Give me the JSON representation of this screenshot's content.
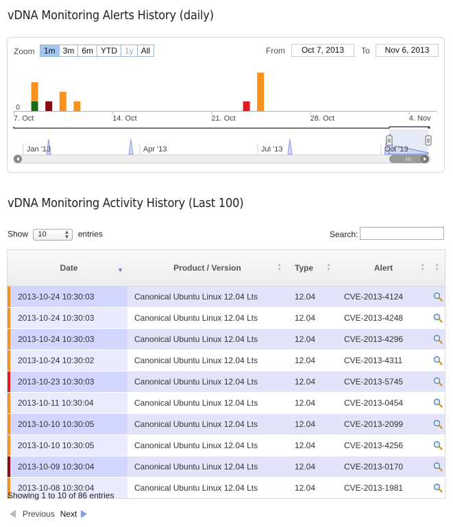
{
  "alerts_section": {
    "title": "vDNA Monitoring Alerts History (daily)",
    "zoom_label": "Zoom",
    "zoom_buttons": [
      {
        "label": "1m",
        "state": "active"
      },
      {
        "label": "3m",
        "state": "normal"
      },
      {
        "label": "6m",
        "state": "normal"
      },
      {
        "label": "YTD",
        "state": "normal"
      },
      {
        "label": "1y",
        "state": "disabled"
      },
      {
        "label": "All",
        "state": "normal"
      }
    ],
    "from_label": "From",
    "from_value": "Oct 7, 2013",
    "to_label": "To",
    "to_value": "Nov 6, 2013"
  },
  "chart_data": {
    "type": "bar",
    "stacked": true,
    "x_range": [
      "2013-10-07",
      "2013-11-06"
    ],
    "x_tick_labels": [
      "7. Oct",
      "14. Oct",
      "21. Oct",
      "28. Oct",
      "4. Nov"
    ],
    "y_tick_labels": [
      "0"
    ],
    "ylim": [
      0,
      4
    ],
    "colors": {
      "orange": "#f7921e",
      "green": "#1a6e12",
      "darkred": "#8b0a16",
      "red": "#e31b23"
    },
    "bars": [
      {
        "date": "2013-10-08",
        "segments": [
          {
            "color": "green",
            "value": 1
          },
          {
            "color": "orange",
            "value": 2
          }
        ]
      },
      {
        "date": "2013-10-09",
        "segments": [
          {
            "color": "darkred",
            "value": 1
          }
        ]
      },
      {
        "date": "2013-10-10",
        "segments": [
          {
            "color": "orange",
            "value": 2
          }
        ]
      },
      {
        "date": "2013-10-11",
        "segments": [
          {
            "color": "orange",
            "value": 1
          }
        ]
      },
      {
        "date": "2013-10-23",
        "segments": [
          {
            "color": "red",
            "value": 1
          }
        ]
      },
      {
        "date": "2013-10-24",
        "segments": [
          {
            "color": "orange",
            "value": 4
          }
        ]
      }
    ],
    "navigator": {
      "tick_labels": [
        "Jan '13",
        "Apr '13",
        "Jul '13",
        "Oct '13"
      ]
    }
  },
  "activity_section": {
    "title": "vDNA Monitoring Activity History (Last 100)",
    "show_label": "Show",
    "show_value": "10",
    "entries_label": "entries",
    "search_label": "Search:",
    "search_value": "",
    "columns": [
      "Date",
      "Product / Version",
      "Type",
      "Alert"
    ],
    "rows": [
      {
        "date": "2013-10-24 10:30:03",
        "product": "Canonical Ubuntu Linux 12.04 Lts",
        "type": "12.04",
        "alert": "CVE-2013-4124",
        "flag": "#f7921e"
      },
      {
        "date": "2013-10-24 10:30:03",
        "product": "Canonical Ubuntu Linux 12.04 Lts",
        "type": "12.04",
        "alert": "CVE-2013-4248",
        "flag": "#f7921e"
      },
      {
        "date": "2013-10-24 10:30:03",
        "product": "Canonical Ubuntu Linux 12.04 Lts",
        "type": "12.04",
        "alert": "CVE-2013-4296",
        "flag": "#f7921e"
      },
      {
        "date": "2013-10-24 10:30:02",
        "product": "Canonical Ubuntu Linux 12.04 Lts",
        "type": "12.04",
        "alert": "CVE-2013-4311",
        "flag": "#f7921e"
      },
      {
        "date": "2013-10-23 10:30:03",
        "product": "Canonical Ubuntu Linux 12.04 Lts",
        "type": "12.04",
        "alert": "CVE-2013-5745",
        "flag": "#e31b23"
      },
      {
        "date": "2013-10-11 10:30:04",
        "product": "Canonical Ubuntu Linux 12.04 Lts",
        "type": "12.04",
        "alert": "CVE-2013-0454",
        "flag": "#f7921e"
      },
      {
        "date": "2013-10-10 10:30:05",
        "product": "Canonical Ubuntu Linux 12.04 Lts",
        "type": "12.04",
        "alert": "CVE-2013-2099",
        "flag": "#f7921e"
      },
      {
        "date": "2013-10-10 10:30:05",
        "product": "Canonical Ubuntu Linux 12.04 Lts",
        "type": "12.04",
        "alert": "CVE-2013-4256",
        "flag": "#f7921e"
      },
      {
        "date": "2013-10-09 10:30:04",
        "product": "Canonical Ubuntu Linux 12.04 Lts",
        "type": "12.04",
        "alert": "CVE-2013-0170",
        "flag": "#8b0a16"
      },
      {
        "date": "2013-10-08 10:30:04",
        "product": "Canonical Ubuntu Linux 12.04 Lts",
        "type": "12.04",
        "alert": "CVE-2013-1981",
        "flag": "#f7921e"
      }
    ],
    "row_icon": "magnifier-icon",
    "info_text": "Showing 1 to 10 of 86 entries",
    "prev_label": "Previous",
    "next_label": "Next"
  }
}
